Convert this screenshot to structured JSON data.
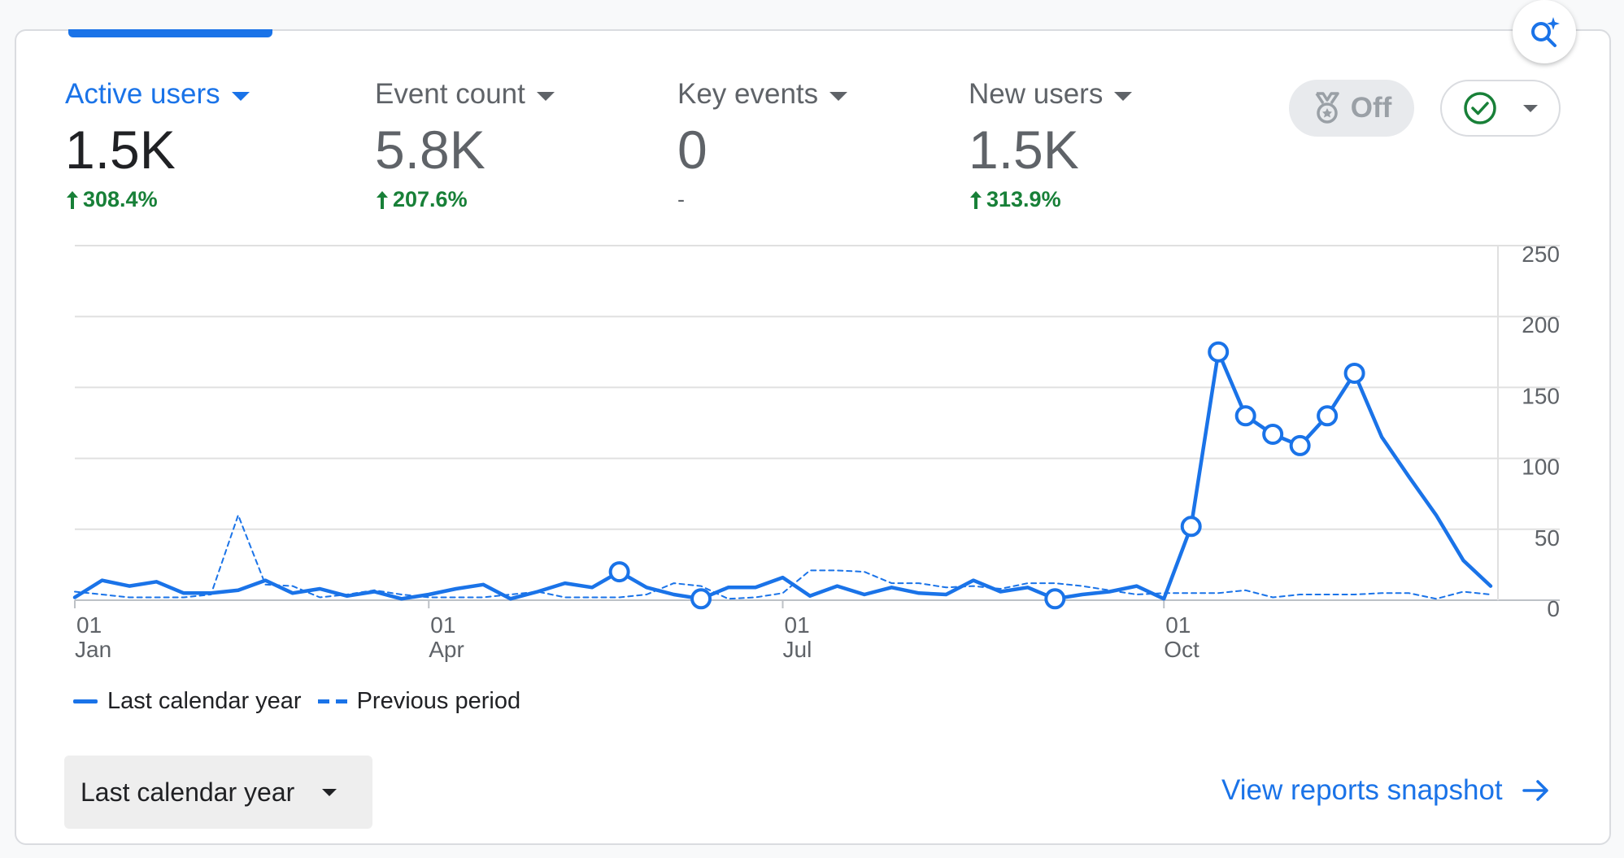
{
  "metrics": [
    {
      "label": "Active users",
      "value": "1.5K",
      "change": "308.4%",
      "trend": "up",
      "selected": true
    },
    {
      "label": "Event count",
      "value": "5.8K",
      "change": "207.6%",
      "trend": "up",
      "selected": false
    },
    {
      "label": "Key events",
      "value": "0",
      "change": "-",
      "trend": "none",
      "selected": false
    },
    {
      "label": "New users",
      "value": "1.5K",
      "change": "313.9%",
      "trend": "up",
      "selected": false
    }
  ],
  "benchmark_toggle": {
    "label": "Off",
    "icon": "medal-icon"
  },
  "status_dropdown": {
    "icon": "check-circle-icon"
  },
  "insights_button": {
    "icon": "search-spark-icon"
  },
  "colors": {
    "accent": "#1a73e8",
    "positive": "#188038",
    "grid": "#e0e0e0"
  },
  "chart_data": {
    "type": "line",
    "y_ticks": [
      "250",
      "200",
      "150",
      "100",
      "50",
      "0"
    ],
    "ylim": [
      0,
      250
    ],
    "x_ticks": [
      {
        "day": "01",
        "month": "Jan"
      },
      {
        "day": "01",
        "month": "Apr"
      },
      {
        "day": "01",
        "month": "Jul"
      },
      {
        "day": "01",
        "month": "Oct"
      }
    ],
    "grid": true,
    "series": [
      {
        "name": "Last calendar year",
        "style": "solid",
        "values": [
          2,
          14,
          10,
          13,
          5,
          5,
          7,
          14,
          5,
          8,
          3,
          6,
          1,
          4,
          8,
          11,
          1,
          6,
          12,
          9,
          20,
          9,
          4,
          1,
          9,
          9,
          16,
          3,
          10,
          4,
          9,
          5,
          4,
          14,
          6,
          9,
          1,
          4,
          6,
          10,
          1,
          52,
          175,
          130,
          117,
          109,
          130,
          160,
          115,
          87,
          60,
          28,
          10
        ],
        "markers": [
          20,
          23,
          36,
          41,
          42,
          43,
          44,
          45,
          46,
          47
        ]
      },
      {
        "name": "Previous period",
        "style": "dashed",
        "values": [
          6,
          4,
          2,
          2,
          2,
          4,
          60,
          11,
          10,
          2,
          4,
          7,
          4,
          2,
          2,
          2,
          4,
          6,
          2,
          2,
          2,
          4,
          12,
          10,
          1,
          2,
          5,
          21,
          21,
          20,
          12,
          12,
          9,
          10,
          8,
          12,
          12,
          10,
          7,
          4,
          5,
          5,
          5,
          7,
          2,
          4,
          4,
          4,
          5,
          5,
          1,
          6,
          4
        ]
      }
    ]
  },
  "legend_placement": "bottom-left",
  "date_range": {
    "label": "Last calendar year"
  },
  "snapshot_link": {
    "label": "View reports snapshot"
  }
}
